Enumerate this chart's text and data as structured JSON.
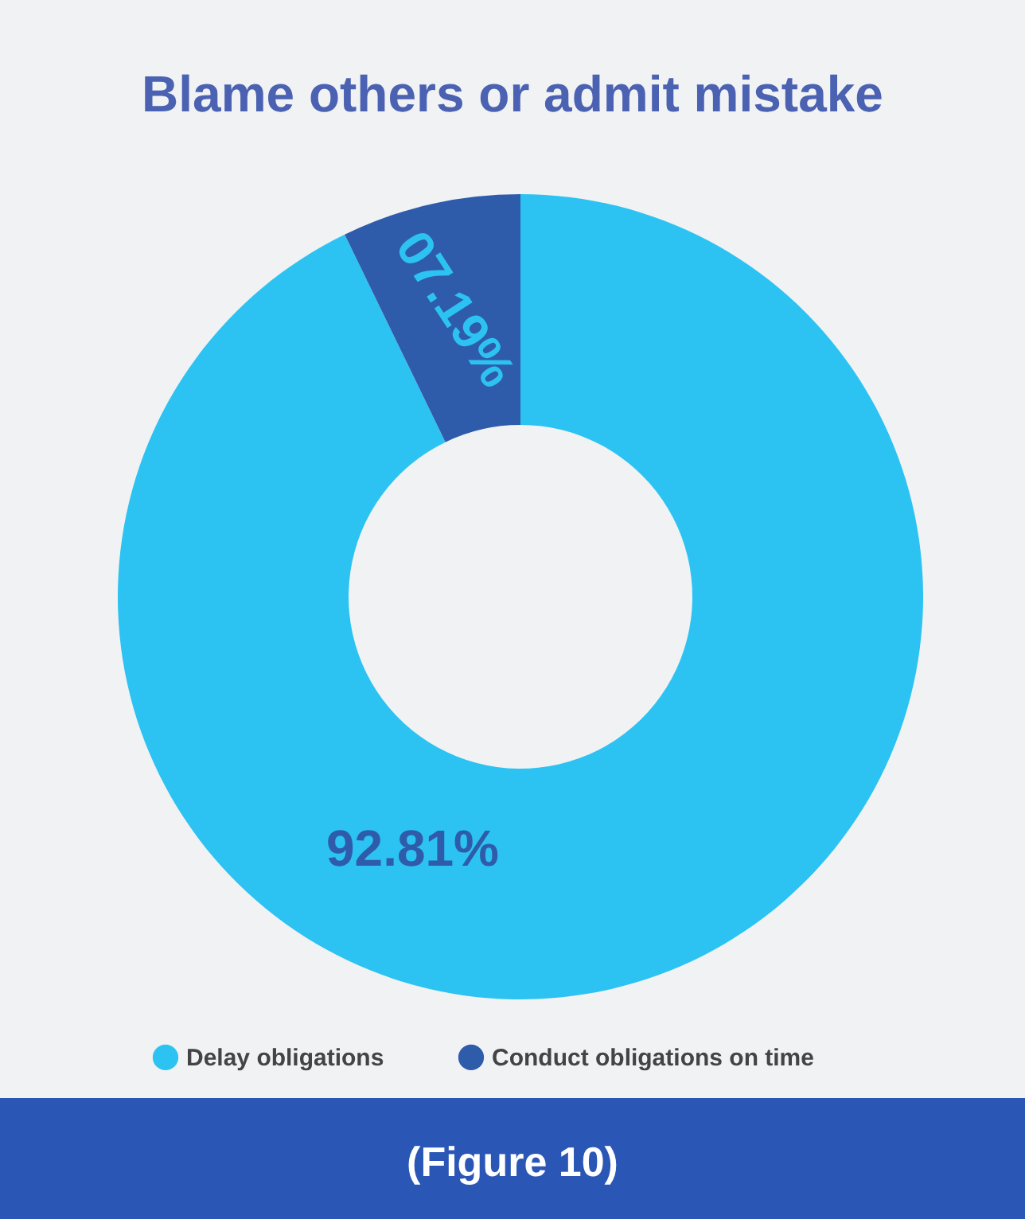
{
  "chart_data": {
    "type": "donut",
    "title": "Blame others or admit mistake",
    "categories": [
      "Delay obligations",
      "Conduct obligations on time"
    ],
    "values": [
      92.81,
      7.19
    ],
    "colors": [
      "#2cc3f2",
      "#2f5caa"
    ],
    "value_labels": [
      "92.81%",
      "07.19%"
    ],
    "legend": "bottom",
    "annotations": [
      "(Figure 10)"
    ]
  }
}
